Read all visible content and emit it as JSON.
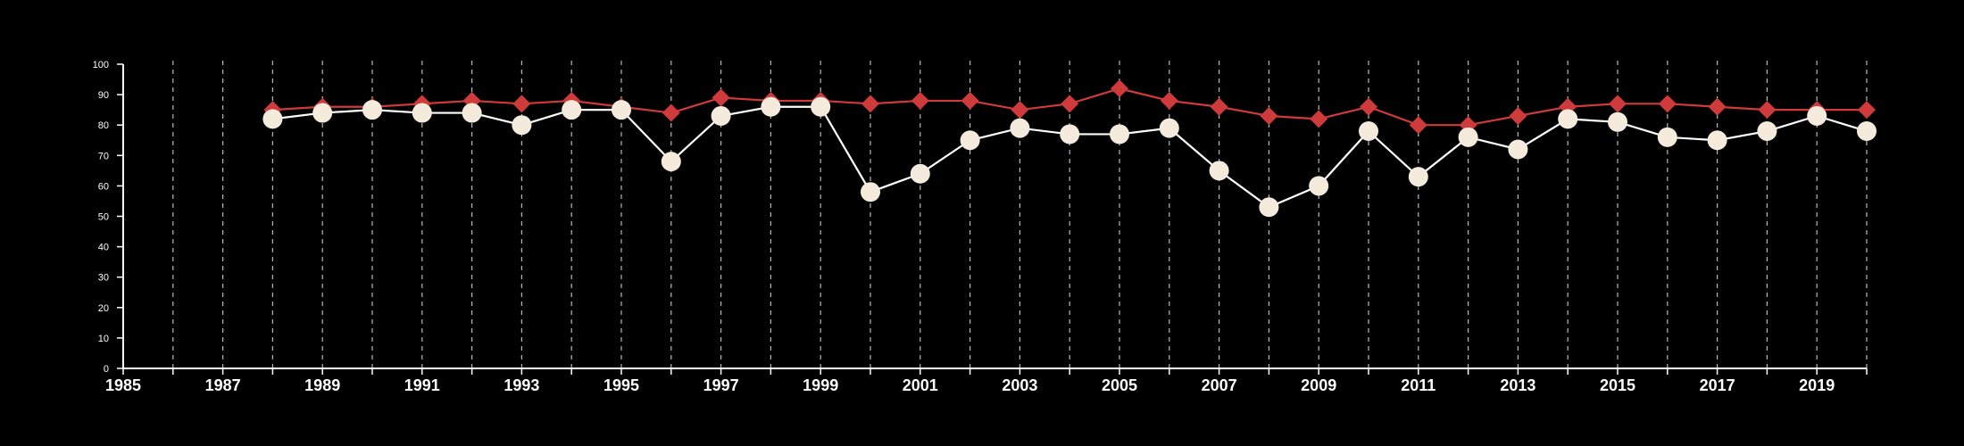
{
  "chart_data": {
    "type": "line",
    "title": "",
    "xlabel": "",
    "ylabel": "",
    "xlim": [
      1985,
      2020
    ],
    "ylim": [
      0,
      100
    ],
    "xticks": [
      1985,
      1987,
      1989,
      1991,
      1993,
      1995,
      1997,
      1999,
      2001,
      2003,
      2005,
      2007,
      2009,
      2011,
      2013,
      2015,
      2017,
      2019
    ],
    "yticks": [
      0,
      10,
      20,
      30,
      40,
      50,
      60,
      70,
      80,
      90,
      100
    ],
    "grid": "vertical dashed lines at every year",
    "legend": "none",
    "x": [
      1988,
      1989,
      1990,
      1991,
      1992,
      1993,
      1994,
      1995,
      1996,
      1997,
      1998,
      1999,
      2000,
      2001,
      2002,
      2003,
      2004,
      2005,
      2006,
      2007,
      2008,
      2009,
      2010,
      2011,
      2012,
      2013,
      2014,
      2015,
      2016,
      2017,
      2018,
      2019,
      2020
    ],
    "series": [
      {
        "color": "#cf3a3a",
        "marker": "diamond",
        "values": [
          85,
          86,
          86,
          87,
          88,
          87,
          88,
          86,
          84,
          89,
          88,
          88,
          87,
          88,
          88,
          85,
          87,
          92,
          88,
          86,
          83,
          82,
          86,
          80,
          80,
          83,
          86,
          87,
          87,
          86,
          85,
          85,
          85
        ]
      },
      {
        "color": "#f5ebdc",
        "line_color": "#ffffff",
        "marker": "circle",
        "values": [
          82,
          84,
          85,
          84,
          84,
          80,
          85,
          85,
          68,
          83,
          86,
          86,
          58,
          64,
          75,
          79,
          77,
          77,
          79,
          65,
          53,
          60,
          78,
          63,
          76,
          72,
          82,
          81,
          76,
          75,
          78,
          83,
          78
        ]
      }
    ]
  }
}
